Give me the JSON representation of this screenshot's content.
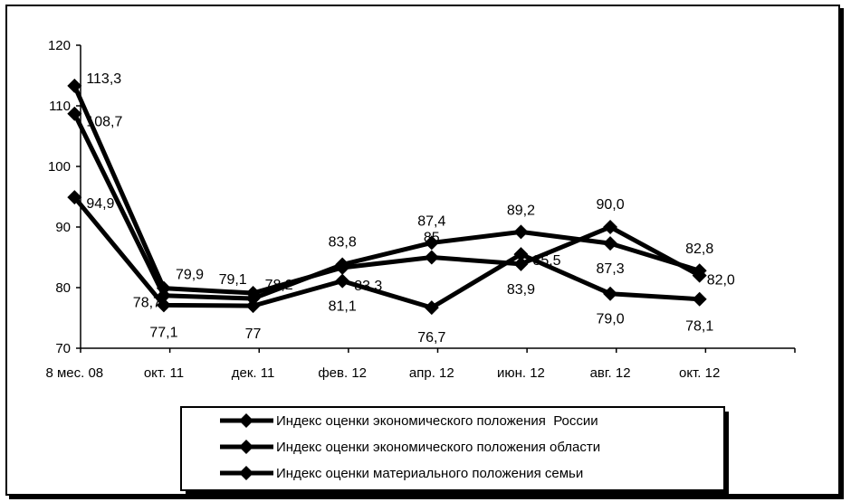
{
  "chart_data": {
    "type": "line",
    "x": [
      "8 мес. 08",
      "окт. 11",
      "дек. 11",
      "фев. 12",
      "апр. 12",
      "июн. 12",
      "авг. 12",
      "окт. 12"
    ],
    "ylim": [
      70,
      120
    ],
    "yticks": [
      70,
      80,
      90,
      100,
      110,
      120
    ],
    "grid": false,
    "legend_position": "bottom",
    "series": [
      {
        "name": "Индекс оценки экономического положения  России",
        "values": [
          113.3,
          79.9,
          79.1,
          83.3,
          85,
          83.9,
          90.0,
          82.0
        ],
        "labels": [
          "113,3",
          "79,9",
          "79,1",
          "83,3",
          "85",
          "83,9",
          "90,0",
          "82,0"
        ]
      },
      {
        "name": "Индекс оценки экономического положения области",
        "values": [
          108.7,
          78.7,
          78.2,
          83.8,
          87.4,
          89.2,
          87.3,
          82.8
        ],
        "labels": [
          "108,7",
          "78,7",
          "78,2",
          "83,8",
          "87,4",
          "89,2",
          "87,3",
          "82,8"
        ]
      },
      {
        "name": "Индекс оценки материального положения семьи",
        "values": [
          94.9,
          77.1,
          77,
          81.1,
          76.7,
          85.5,
          79.0,
          78.1
        ],
        "labels": [
          "94,9",
          "77,1",
          "77",
          "81,1",
          "76,7",
          "85,5",
          "79,0",
          "78,1"
        ]
      }
    ],
    "line_color": "#000000"
  }
}
